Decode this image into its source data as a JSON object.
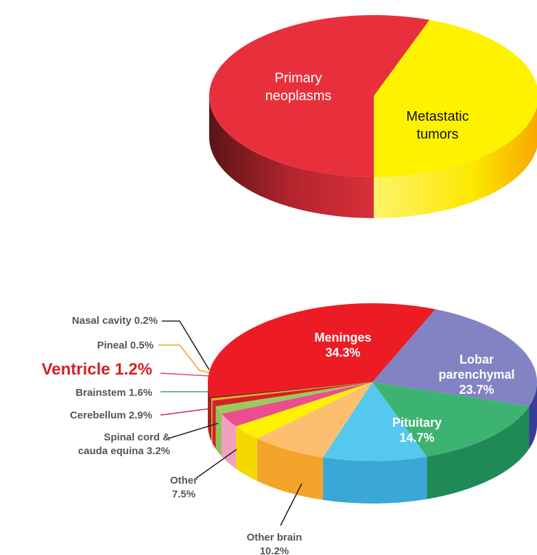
{
  "chart_data": [
    {
      "type": "pie",
      "title": "",
      "slices": [
        {
          "label": "Primary neoplasms",
          "lines": [
            "Primary",
            "neoplasms"
          ],
          "color": "#e8303c",
          "side_color": "#b3242d"
        },
        {
          "label": "Metastatic tumors",
          "lines": [
            "Metastatic",
            "tumors"
          ],
          "color": "#fff200",
          "side_color": "#f7c600"
        }
      ]
    },
    {
      "type": "pie",
      "title": "",
      "unit": "%",
      "slices": [
        {
          "label": "Meninges",
          "value": 34.3,
          "lines": [
            "Meninges",
            "34.3%"
          ],
          "color": "#ed1c24",
          "side_color": "#b51c22",
          "placement": "inside"
        },
        {
          "label": "Lobar parenchymal",
          "value": 23.7,
          "lines": [
            "Lobar",
            "parenchymal",
            "23.7%"
          ],
          "color": "#8283c2",
          "side_color": "#3a3a99",
          "placement": "inside"
        },
        {
          "label": "Pituitary",
          "value": 14.7,
          "lines": [
            "Pituitary",
            "14.7%"
          ],
          "color": "#3cb371",
          "side_color": "#1f8a58",
          "placement": "inside"
        },
        {
          "label": "Other brain",
          "value": 10.2,
          "lines": [
            "Other brain",
            "10.2%"
          ],
          "color": "#55c8f0",
          "side_color": "#3aa8d6",
          "placement": "below"
        },
        {
          "label": "Other",
          "value": 7.5,
          "lines": [
            "Other",
            "7.5%"
          ],
          "color": "#fdbf6f",
          "side_color": "#f4a42a",
          "placement": "left"
        },
        {
          "label": "Spinal cord & cauda equina",
          "value": 3.2,
          "lines": [
            "Spinal cord &",
            "cauda equina 3.2%"
          ],
          "color": "#fff200",
          "side_color": "#f5d800",
          "placement": "left"
        },
        {
          "label": "Cerebellum",
          "value": 2.9,
          "lines": [
            "Cerebellum 2.9%"
          ],
          "color": "#ec4d8e",
          "side_color": "#f2a0c0",
          "placement": "left"
        },
        {
          "label": "Brainstem",
          "value": 1.6,
          "lines": [
            "Brainstem 1.6%"
          ],
          "color": "#9acb5a",
          "side_color": "#8fc25a",
          "placement": "left"
        },
        {
          "label": "Ventricle",
          "value": 1.2,
          "lines": [
            "Ventricle 1.2%"
          ],
          "color": "#d42027",
          "side_color": "#d42027",
          "placement": "left",
          "emphasis": true
        },
        {
          "label": "Pineal",
          "value": 0.5,
          "lines": [
            "Pineal 0.5%"
          ],
          "color": "#f7a21b",
          "side_color": "#f7a21b",
          "placement": "left"
        },
        {
          "label": "Nasal cavity",
          "value": 0.2,
          "lines": [
            "Nasal cavity 0.2%"
          ],
          "color": "#231f20",
          "side_color": "#231f20",
          "placement": "left"
        }
      ],
      "leader_colors": {
        "Nasal cavity": "#231f20",
        "Pineal": "#f7a21b",
        "Ventricle": "#e0457b",
        "Brainstem": "#2aa37a",
        "Cerebellum": "#d1285c",
        "Spinal cord & cauda equina": "#231f20",
        "Other": "#231f20",
        "Other brain": "#231f20"
      }
    }
  ]
}
